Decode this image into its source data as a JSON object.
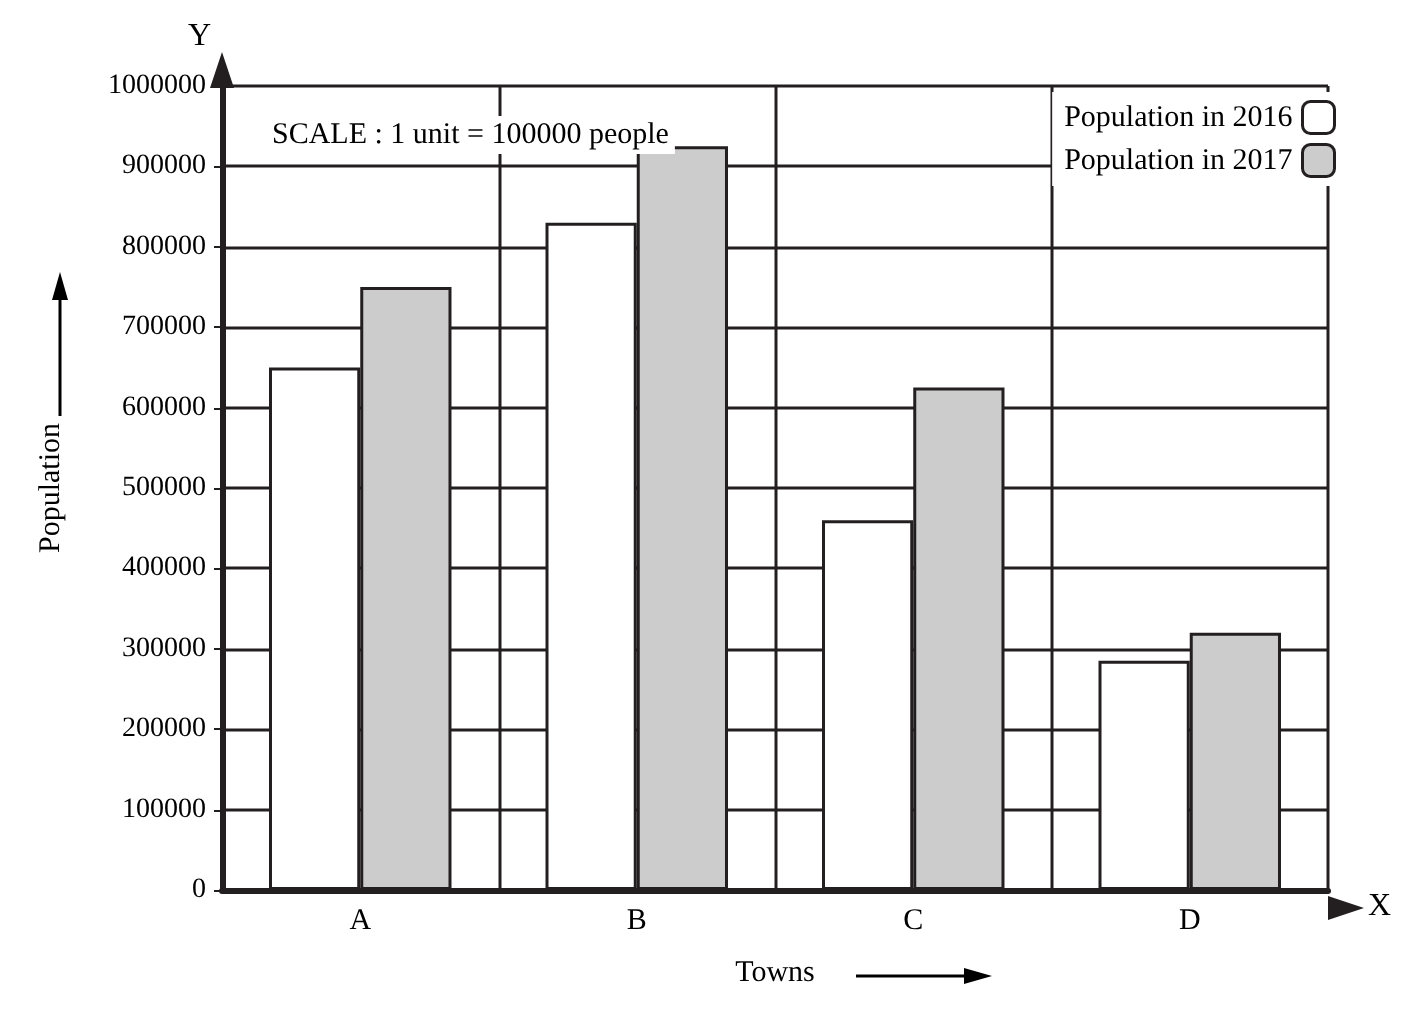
{
  "chart_data": {
    "type": "bar",
    "xlabel": "Towns",
    "ylabel": "Population",
    "categories": [
      "A",
      "B",
      "C",
      "D"
    ],
    "series": [
      {
        "name": "Population in 2016",
        "color": "#ffffff",
        "values": [
          650000,
          830000,
          460000,
          285000
        ]
      },
      {
        "name": "Population in 2017",
        "color": "#cccccc",
        "values": [
          750000,
          925000,
          625000,
          320000
        ]
      }
    ],
    "ylim": [
      0,
      1000000
    ],
    "yticks": [
      0,
      100000,
      200000,
      300000,
      400000,
      500000,
      600000,
      700000,
      800000,
      900000,
      1000000
    ],
    "grid": true,
    "legend": "top right",
    "annotations": [
      "SCALE : 1 unit = 100000 people",
      "Y",
      "X"
    ]
  }
}
